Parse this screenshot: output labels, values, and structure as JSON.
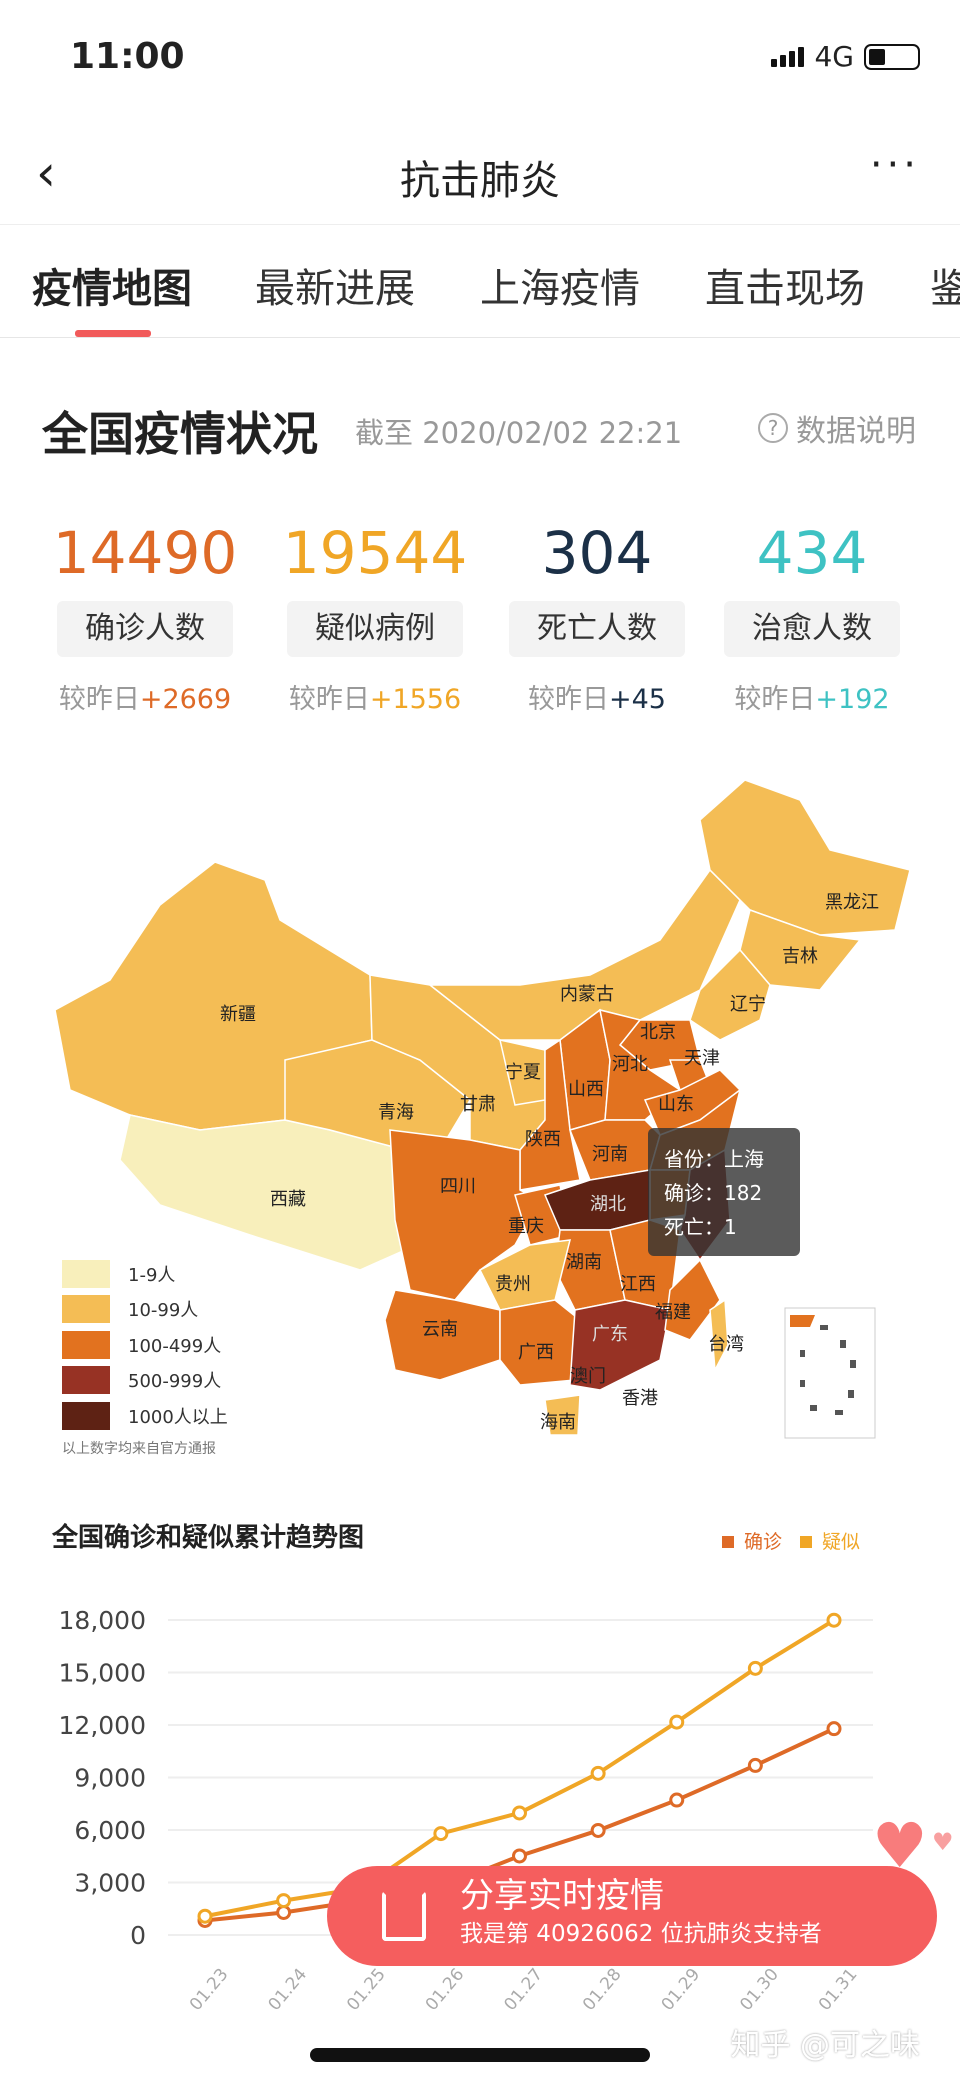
{
  "status": {
    "time": "11:00",
    "network": "4G"
  },
  "nav": {
    "title": "抗击肺炎",
    "back_icon": "chevron-left-icon",
    "more": "···"
  },
  "tabs": [
    {
      "label": "疫情地图",
      "active": true
    },
    {
      "label": "最新进展"
    },
    {
      "label": "上海疫情"
    },
    {
      "label": "直击现场"
    },
    {
      "label": "鉴"
    }
  ],
  "section": {
    "title": "全国疫情状况",
    "time": "截至 2020/02/02 22:21",
    "info": "数据说明",
    "info_icon": "?"
  },
  "stats": [
    {
      "value": "14490",
      "label": "确诊人数",
      "cmp_prefix": "较昨日",
      "cmp": "+2669",
      "color": "#de6a27"
    },
    {
      "value": "19544",
      "label": "疑似病例",
      "cmp_prefix": "较昨日",
      "cmp": "+1556",
      "color": "#f0a626"
    },
    {
      "value": "304",
      "label": "死亡人数",
      "cmp_prefix": "较昨日",
      "cmp": "+45",
      "color": "#1b3047"
    },
    {
      "value": "434",
      "label": "治愈人数",
      "cmp_prefix": "较昨日",
      "cmp": "+192",
      "color": "#3ec2c3"
    }
  ],
  "map": {
    "provinces": [
      "新疆",
      "西藏",
      "青海",
      "甘肃",
      "内蒙古",
      "黑龙江",
      "吉林",
      "辽宁",
      "北京",
      "天津",
      "河北",
      "山西",
      "山东",
      "宁夏",
      "陕西",
      "河南",
      "四川",
      "重庆",
      "湖北",
      "湖南",
      "江西",
      "贵州",
      "云南",
      "广西",
      "广东",
      "福建",
      "台湾",
      "海南",
      "澳门",
      "香港"
    ],
    "tooltip": {
      "province_label": "省份：",
      "province": "上海",
      "confirmed_label": "确诊：",
      "confirmed": "182",
      "death_label": "死亡：",
      "death": "1"
    },
    "legend": [
      {
        "label": "1-9人",
        "color": "#f8efbb"
      },
      {
        "label": "10-99人",
        "color": "#f4bd55"
      },
      {
        "label": "100-499人",
        "color": "#e2721f"
      },
      {
        "label": "500-999人",
        "color": "#973224"
      },
      {
        "label": "1000人以上",
        "color": "#5e2214"
      }
    ],
    "note": "以上数字均来自官方通报"
  },
  "chart_data": {
    "type": "line",
    "title": "全国确诊和疑似累计趋势图",
    "x": [
      "01.23",
      "01.24",
      "01.25",
      "01.26",
      "01.27",
      "01.28",
      "01.29",
      "01.30",
      "01.31"
    ],
    "series": [
      {
        "name": "确诊",
        "color": "#de6a27",
        "values": [
          830,
          1287,
          1975,
          2744,
          4515,
          5974,
          7711,
          9692,
          11791
        ]
      },
      {
        "name": "疑似",
        "color": "#f0a626",
        "values": [
          1072,
          1965,
          2684,
          5794,
          6973,
          9239,
          12167,
          15238,
          17988
        ]
      }
    ],
    "yticks": [
      "0",
      "3,000",
      "6,000",
      "9,000",
      "12,000",
      "15,000",
      "18,000"
    ],
    "ylim": [
      0,
      18000
    ],
    "grid": true,
    "legend": "top-right"
  },
  "share": {
    "title": "分享实时疫情",
    "subtitle": "我是第 40926062 位抗肺炎支持者"
  },
  "watermark": "知乎 @可之味"
}
